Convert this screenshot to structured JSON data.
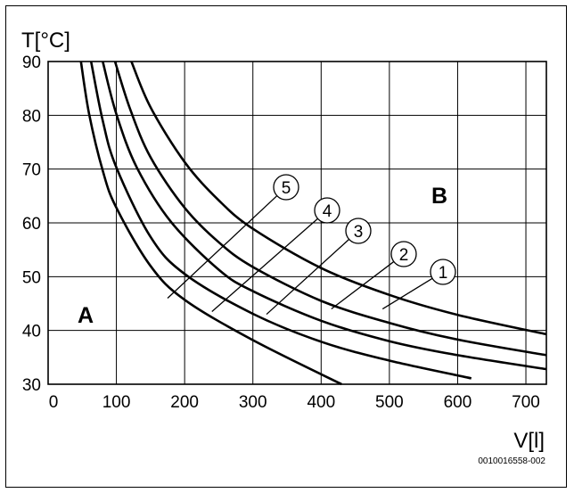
{
  "chart_data": {
    "type": "line",
    "xlabel": "V[l]",
    "ylabel": "T[°C]",
    "xlim": [
      0,
      730
    ],
    "ylim": [
      30,
      90
    ],
    "x_ticks": [
      0,
      100,
      200,
      300,
      400,
      500,
      600,
      700
    ],
    "y_ticks": [
      30,
      40,
      50,
      60,
      70,
      80,
      90
    ],
    "grid": true,
    "regions": [
      "A",
      "B"
    ],
    "series": [
      {
        "name": "1",
        "x": [
          122,
          150,
          200,
          250,
          300,
          400,
          500,
          600,
          730
        ],
        "y": [
          90,
          81.5,
          71.3,
          64.2,
          58.9,
          51.6,
          46.6,
          42.9,
          39.3
        ]
      },
      {
        "name": "2",
        "x": [
          98,
          120,
          150,
          200,
          250,
          300,
          400,
          500,
          600,
          730
        ],
        "y": [
          90,
          81.2,
          72.2,
          62.8,
          56.4,
          51.8,
          45.5,
          41.4,
          38.3,
          35.4
        ]
      },
      {
        "name": "3",
        "x": [
          80,
          100,
          130,
          180,
          250,
          300,
          400,
          500,
          600,
          730
        ],
        "y": [
          90,
          80.2,
          70.3,
          60.2,
          51.3,
          47.3,
          41.8,
          38.0,
          35.4,
          32.8
        ]
      },
      {
        "name": "4",
        "x": [
          63,
          80,
          100,
          150,
          200,
          300,
          400,
          500,
          620
        ],
        "y": [
          90,
          79.0,
          70.3,
          57.4,
          50.5,
          43.1,
          37.9,
          34.4,
          31.1
        ]
      },
      {
        "name": "5",
        "x": [
          48,
          60,
          80,
          100,
          150,
          200,
          300,
          430
        ],
        "y": [
          90,
          80.3,
          69.7,
          62.8,
          52.0,
          45.7,
          38.2,
          30
        ]
      }
    ],
    "callouts": [
      {
        "label": "5",
        "point": [
          175,
          46.0
        ]
      },
      {
        "label": "4",
        "point": [
          240,
          43.5
        ]
      },
      {
        "label": "3",
        "point": [
          320,
          43.0
        ]
      },
      {
        "label": "2",
        "point": [
          415,
          44.0
        ]
      },
      {
        "label": "1",
        "point": [
          490,
          44.0
        ]
      }
    ]
  },
  "document_id": "0010016558-002"
}
